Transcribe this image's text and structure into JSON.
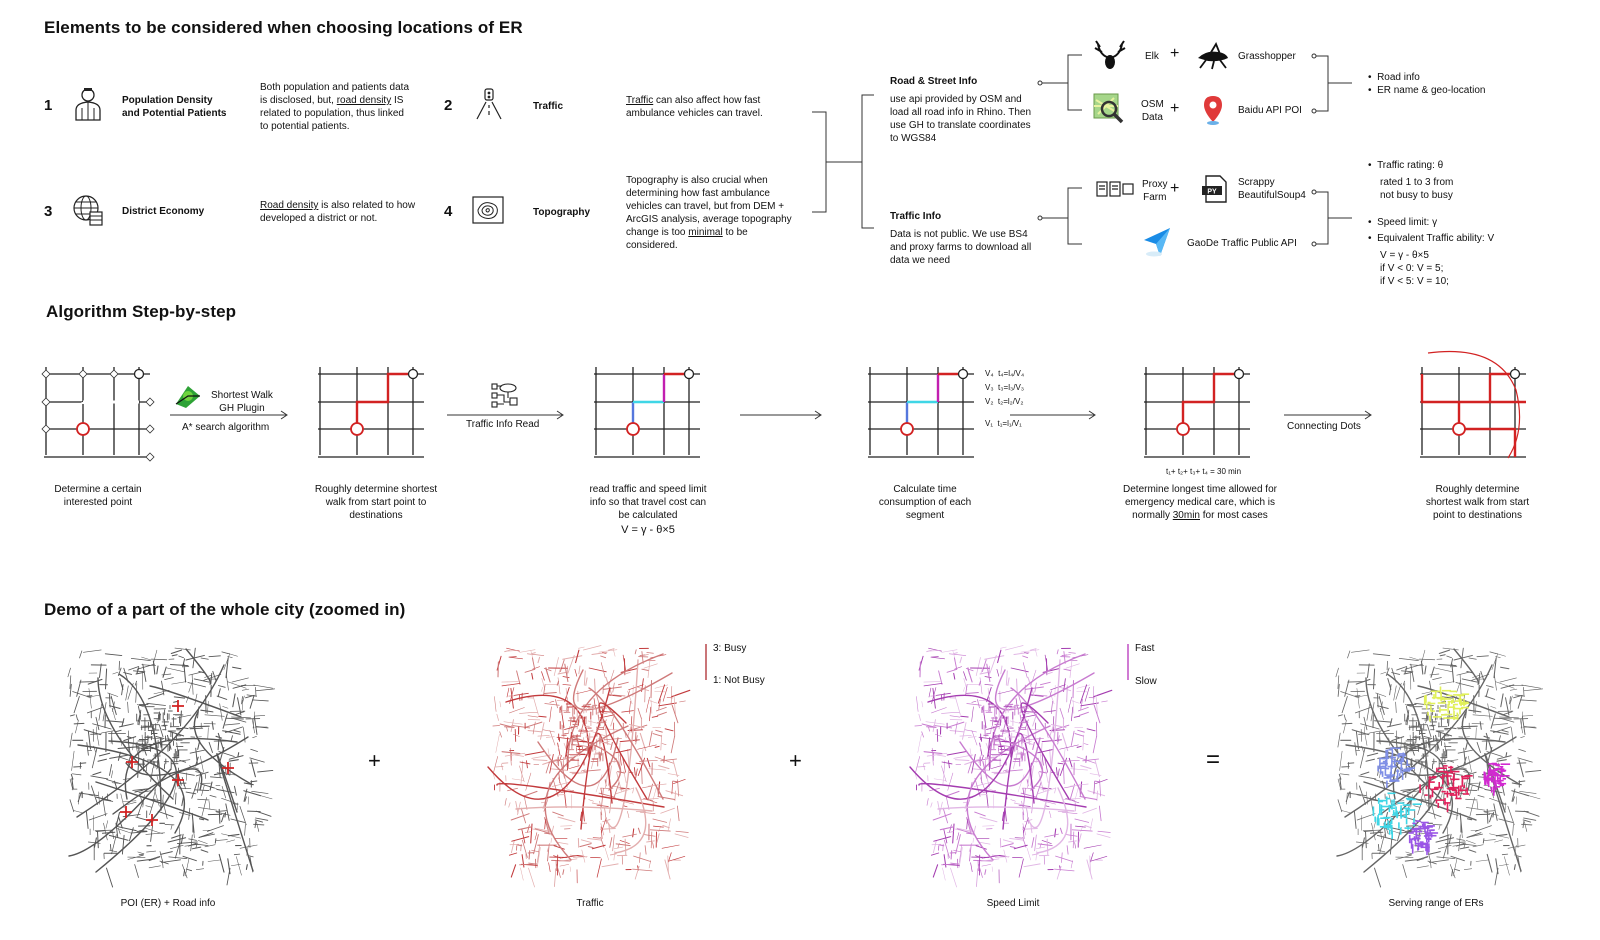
{
  "section1": {
    "title": "Elements to be considered when choosing locations of ER",
    "items": [
      {
        "num": "1",
        "label_line1": "Population Density",
        "label_line2": "and Potential Patients",
        "icon": "person-icon",
        "desc_a": "Both population and patients data",
        "desc_b": "is disclosed, but, ",
        "desc_link": "road density",
        "desc_c": " IS",
        "desc_d": "related to population, thus linked",
        "desc_e": "to potential patients."
      },
      {
        "num": "2",
        "label_line1": "Traffic",
        "icon": "road-icon",
        "desc_link": "Traffic",
        "desc_a": " can also affect how fast",
        "desc_b": "ambulance vehicles can travel."
      },
      {
        "num": "3",
        "label_line1": "District Economy",
        "icon": "globe-coins-icon",
        "desc_link": "Road density",
        "desc_a": " is also related to how",
        "desc_b": "developed a district or not."
      },
      {
        "num": "4",
        "label_line1": "Topography",
        "icon": "topography-icon",
        "desc_a": "Topography is also crucial when",
        "desc_b": "determining how fast ambulance",
        "desc_c": "vehicles can travel, but from DEM +",
        "desc_d": "ArcGIS analysis, average topography",
        "desc_e1": "change is too ",
        "desc_link": "minimal",
        "desc_e2": " to be",
        "desc_f": "considered."
      }
    ],
    "road": {
      "title": "Road & Street Info",
      "l1": "use api provided by OSM and",
      "l2": "load all road info in Rhino. Then",
      "l3": "use GH to translate coordinates",
      "l4": "to WGS84"
    },
    "traffic": {
      "title": "Traffic Info",
      "l1": "Data is not public. We use BS4",
      "l2": "and proxy farms to download all",
      "l3": "data we need"
    },
    "tools": {
      "elk": "Elk",
      "grasshopper": "Grasshopper",
      "osm1": "OSM",
      "osm2": "Data",
      "baidu": "Baidu API POI",
      "proxy1": "Proxy",
      "proxy2": "Farm",
      "scrappy1": "Scrappy",
      "scrappy2": "BeautifulSoup4",
      "gaode": "GaoDe Traffic Public API",
      "plus": "+"
    },
    "out1": {
      "b1": "Road info",
      "b2": "ER name & geo-location"
    },
    "out2": {
      "b1": "Traffic rating: θ",
      "l2": "rated 1 to 3 from",
      "l3": "not busy to busy",
      "b2": "Speed limit: γ",
      "b3": "Equivalent Traffic ability: V",
      "f1": "V = γ - θ×5",
      "f2": "if V < 0: V = 5;",
      "f3": "if V < 5: V = 10;"
    }
  },
  "section2": {
    "title": "Algorithm Step-by-step",
    "arrow1_l1": "Shortest Walk",
    "arrow1_l2": "GH Plugin",
    "arrow1_l3": "A* search algorithm",
    "arrow2": "Traffic Info Read",
    "arrow5": "Connecting Dots",
    "seg_labels": [
      {
        "v": "V₄",
        "t": "t₄=l₄/V₄"
      },
      {
        "v": "V₃",
        "t": "t₃=l₃/V₃"
      },
      {
        "v": "V₂",
        "t": "t₂=l₂/V₂"
      },
      {
        "v": "V₁",
        "t": "t₁=l₁/V₁"
      }
    ],
    "sum_formula": "t₁+ t₂+ t₃+ t₄ = 30 min",
    "captions": [
      {
        "l1": "Determine a certain",
        "l2": "interested point"
      },
      {
        "l1": "Roughly determine shortest",
        "l2": "walk from start point to",
        "l3": "destinations"
      },
      {
        "l1": "read traffic and speed limit",
        "l2": "info so that travel cost can",
        "l3": "be calculated",
        "l4": "V = γ - θ×5"
      },
      {
        "l1": "Calculate time",
        "l2": "consumption of each",
        "l3": "segment"
      },
      {
        "l1": "Determine longest time allowed for",
        "l2": "emergency medical care, which is",
        "l3a": "normally ",
        "l3u": "30min",
        "l3b": " for most cases"
      },
      {
        "l1": "Roughly determine",
        "l2": "shortest walk from start",
        "l3": "point to destinations"
      }
    ]
  },
  "section3": {
    "title": "Demo of a part of the whole city (zoomed in)",
    "maps": [
      {
        "caption": "POI (ER) + Road info"
      },
      {
        "caption": "Traffic"
      },
      {
        "caption": "Speed Limit"
      },
      {
        "caption": "Serving range of ERs"
      }
    ],
    "legend_traffic": {
      "hi": "3: Busy",
      "lo": "1: Not Busy"
    },
    "legend_speed": {
      "hi": "Fast",
      "lo": "Slow"
    },
    "ops": [
      "+",
      "+",
      "="
    ]
  },
  "colors": {
    "red": "#d22222",
    "magenta": "#c21fb0",
    "cyan": "#3fd6e6",
    "blue": "#5577dd",
    "traffic": "#b8474a",
    "speed": "#c04fc4"
  }
}
